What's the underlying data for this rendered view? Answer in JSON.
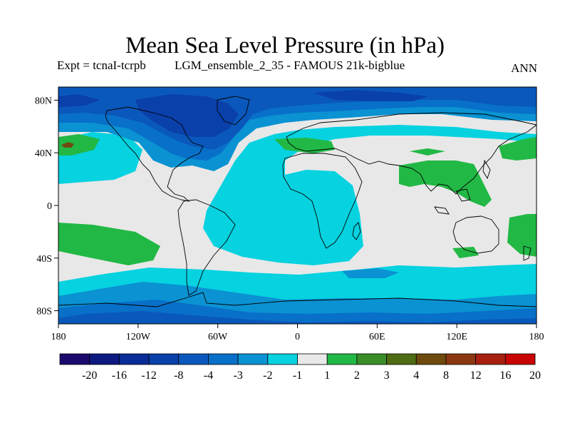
{
  "title": "Mean Sea Level Pressure (in hPa)",
  "subtitle_left": "Expt = tcnaI-tcrpb",
  "subtitle_center": "LGM_ensemble_2_35 - FAMOUS 21k-bigblue",
  "subtitle_right": "ANN",
  "map": {
    "projection": "cylindrical-equidistant",
    "lon_range": [
      -180,
      180
    ],
    "lat_range": [
      -90,
      90
    ],
    "lat_ticks": [
      {
        "lat": 80,
        "label": "80N"
      },
      {
        "lat": 40,
        "label": "40N"
      },
      {
        "lat": 0,
        "label": "0"
      },
      {
        "lat": -40,
        "label": "40S"
      },
      {
        "lat": -80,
        "label": "80S"
      }
    ],
    "lon_ticks": [
      {
        "lon": -180,
        "label": "180"
      },
      {
        "lon": -120,
        "label": "120W"
      },
      {
        "lon": -60,
        "label": "60W"
      },
      {
        "lon": 0,
        "label": "0"
      },
      {
        "lon": 60,
        "label": "60E"
      },
      {
        "lon": 120,
        "label": "120E"
      },
      {
        "lon": 180,
        "label": "180"
      }
    ]
  },
  "colorbar": {
    "colors": [
      "#1d0a6e",
      "#0d1a80",
      "#0a2c96",
      "#0a40aa",
      "#0a58bb",
      "#0870c8",
      "#0a92d2",
      "#06d2e0",
      "#e8e8e8",
      "#22b845",
      "#3a8e28",
      "#4f6c14",
      "#6e4a0f",
      "#8c3810",
      "#a82010",
      "#c80404"
    ],
    "labels": [
      "-20",
      "-16",
      "-12",
      "-8",
      "-4",
      "-3",
      "-2",
      "-1",
      "1",
      "2",
      "3",
      "4",
      "8",
      "12",
      "16",
      "20"
    ]
  },
  "colors": {
    "neutral": "#e8e8e8",
    "cyan": "#06d2e0",
    "light_blue": "#0a92d2",
    "medium_blue": "#0870c8",
    "blue": "#0a58bb",
    "dark_blue": "#0a40aa",
    "green": "#22b845",
    "brown": "#6e4a0f"
  }
}
